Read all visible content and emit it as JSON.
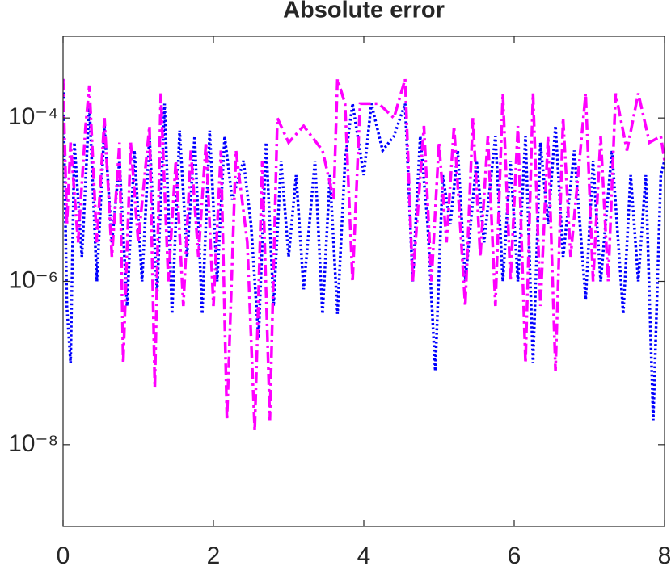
{
  "chart_data": {
    "type": "line",
    "title": "Absolute error",
    "xlim": [
      0,
      8
    ],
    "xticks": [
      0,
      2,
      4,
      6,
      8
    ],
    "ylim": [
      1e-09,
      0.001
    ],
    "log_y": true,
    "yticks": [
      {
        "value": 1e-08,
        "label": "10⁻⁸"
      },
      {
        "value": 1e-06,
        "label": "10⁻⁶"
      },
      {
        "value": 0.0001,
        "label": "10⁻⁴"
      }
    ],
    "series": [
      {
        "color": "#0000ff",
        "style": "dotted",
        "x": [
          0,
          0.05,
          0.1,
          0.15,
          0.25,
          0.35,
          0.45,
          0.55,
          0.65,
          0.75,
          0.85,
          0.95,
          1.05,
          1.15,
          1.25,
          1.35,
          1.45,
          1.55,
          1.65,
          1.75,
          1.85,
          1.95,
          2.05,
          2.15,
          2.25,
          2.4,
          2.5,
          2.6,
          2.7,
          2.8,
          2.9,
          3.0,
          3.1,
          3.2,
          3.35,
          3.45,
          3.55,
          3.65,
          3.75,
          3.85,
          4.0,
          4.1,
          4.25,
          4.4,
          4.55,
          4.65,
          4.75,
          4.85,
          4.95,
          5.05,
          5.15,
          5.25,
          5.35,
          5.5,
          5.6,
          5.75,
          5.85,
          5.95,
          6.05,
          6.15,
          6.25,
          6.35,
          6.45,
          6.55,
          6.65,
          6.8,
          6.95,
          7.05,
          7.15,
          7.3,
          7.45,
          7.55,
          7.65,
          7.75,
          7.85,
          7.95,
          8.0
        ],
        "values": [
          0.0003,
          5e-07,
          1e-07,
          5e-05,
          2e-06,
          0.00015,
          1e-06,
          8e-05,
          3e-06,
          3e-05,
          5e-07,
          4e-05,
          1e-06,
          6e-05,
          7e-07,
          0.00015,
          4e-07,
          7e-05,
          2e-06,
          6e-05,
          4e-07,
          7e-05,
          1e-06,
          6e-05,
          1e-05,
          3e-05,
          5e-06,
          2e-07,
          5e-05,
          5e-07,
          3e-05,
          2e-06,
          2e-05,
          8e-07,
          3e-05,
          4e-07,
          2e-05,
          4e-07,
          3e-05,
          0.00015,
          2e-05,
          0.00015,
          4e-05,
          6e-05,
          0.00015,
          1e-06,
          6e-05,
          5e-06,
          8e-08,
          2e-05,
          5e-06,
          4e-05,
          1e-06,
          3e-05,
          3e-06,
          6e-05,
          1e-06,
          3e-05,
          1e-06,
          6e-05,
          1e-07,
          5e-05,
          5e-06,
          8e-05,
          2e-06,
          4e-05,
          6e-07,
          3e-05,
          1e-06,
          4e-05,
          4e-07,
          2e-05,
          1e-06,
          2e-05,
          2e-08,
          2e-05,
          3e-05
        ]
      },
      {
        "color": "#ff00ff",
        "style": "dashdot",
        "x": [
          0,
          0.05,
          0.1,
          0.2,
          0.3,
          0.35,
          0.45,
          0.55,
          0.65,
          0.75,
          0.8,
          0.9,
          1.0,
          1.15,
          1.22,
          1.3,
          1.4,
          1.5,
          1.6,
          1.7,
          1.8,
          1.9,
          2.0,
          2.1,
          2.18,
          2.3,
          2.45,
          2.55,
          2.65,
          2.75,
          2.85,
          3.0,
          3.2,
          3.45,
          3.6,
          3.65,
          3.75,
          3.85,
          3.95,
          4.2,
          4.4,
          4.55,
          4.65,
          4.8,
          4.9,
          5.0,
          5.1,
          5.2,
          5.35,
          5.45,
          5.55,
          5.65,
          5.75,
          5.85,
          5.95,
          6.05,
          6.15,
          6.25,
          6.35,
          6.45,
          6.55,
          6.65,
          6.75,
          6.95,
          7.05,
          7.15,
          7.25,
          7.35,
          7.5,
          7.65,
          7.8,
          7.95,
          8.0
        ],
        "values": [
          0.0003,
          5e-06,
          5e-05,
          3e-06,
          8e-05,
          0.00025,
          3e-06,
          0.0001,
          2e-06,
          5e-05,
          1e-07,
          5e-05,
          3e-06,
          8e-05,
          5e-08,
          0.0002,
          1e-06,
          3e-05,
          5e-07,
          4e-05,
          2e-06,
          5e-05,
          5e-07,
          4e-05,
          2e-08,
          4e-05,
          3e-06,
          1.5e-08,
          3e-05,
          2e-08,
          0.0001,
          5e-05,
          8e-05,
          4e-05,
          1e-05,
          0.0003,
          0.00015,
          1e-06,
          0.00015,
          0.00015,
          0.0001,
          0.0003,
          1e-06,
          8e-05,
          1e-06,
          5e-05,
          3e-06,
          8e-05,
          5e-07,
          0.0001,
          2e-06,
          6e-05,
          5e-07,
          0.0002,
          1e-06,
          8e-05,
          1e-07,
          0.0002,
          5e-07,
          6e-05,
          8e-08,
          0.0001,
          2e-06,
          0.0002,
          1e-06,
          6e-05,
          1e-06,
          0.0002,
          4e-05,
          0.0002,
          5e-05,
          6e-05,
          3e-05
        ]
      }
    ]
  }
}
